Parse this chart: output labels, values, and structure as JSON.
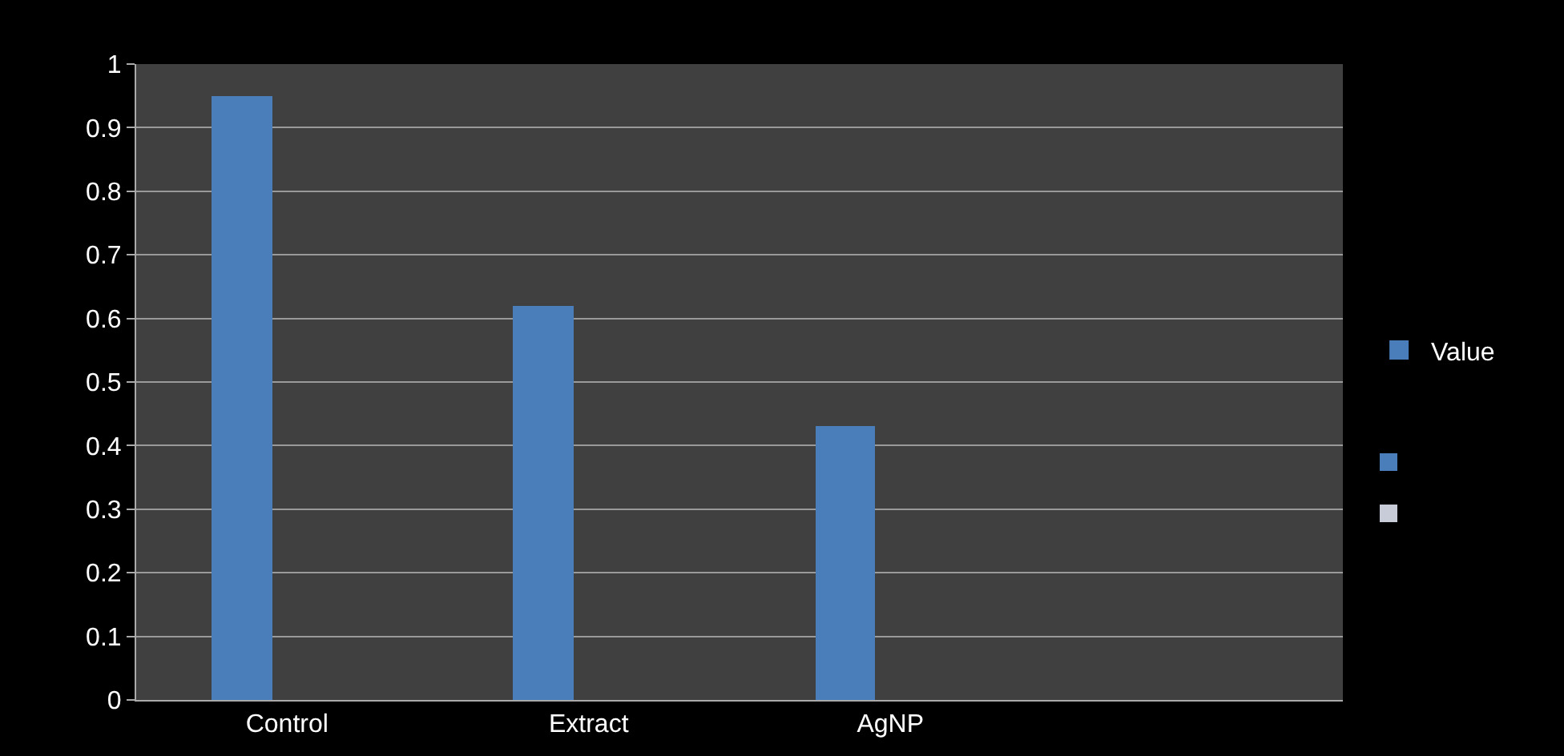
{
  "chart_data": {
    "type": "bar",
    "categories": [
      "Control",
      "Extract",
      "AgNP",
      null
    ],
    "series": [
      {
        "name": "Value",
        "color": "#4a7ebb",
        "values": [
          0.95,
          0.62,
          0.43,
          null
        ]
      }
    ],
    "ylim": [
      0,
      1
    ],
    "yticks": [
      0,
      0.1,
      0.2,
      0.3,
      0.4,
      0.5,
      0.6,
      0.7,
      0.8,
      0.9,
      1
    ],
    "grid": "y",
    "legend": "right"
  }
}
